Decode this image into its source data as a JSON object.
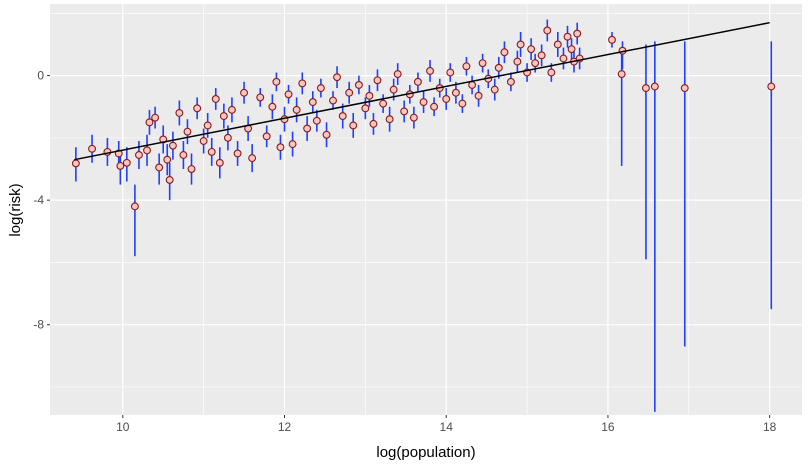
{
  "chart_data": {
    "type": "scatter",
    "xlabel": "log(population)",
    "ylabel": "log(risk)",
    "xlim": [
      9.1,
      18.4
    ],
    "ylim": [
      -10.9,
      2.3
    ],
    "x_ticks": [
      10,
      12,
      14,
      16,
      18
    ],
    "y_ticks": [
      0,
      -4,
      -8
    ],
    "x_tick_labels": [
      "10",
      "12",
      "14",
      "16",
      "18"
    ],
    "y_tick_labels": [
      "0",
      "-4",
      "-8"
    ],
    "grid": true,
    "legend": "none",
    "colors": {
      "panel": "#ebebeb",
      "grid": "#ffffff",
      "point_fill": "#f4c7c3",
      "point_edge": "#8b1a1a",
      "error_bar": "#1f3fff",
      "trend_line": "#000000"
    },
    "trend_line": {
      "x": [
        9.4,
        18.0
      ],
      "y": [
        -2.7,
        1.7
      ]
    },
    "points": [
      {
        "x": 9.42,
        "y": -2.82,
        "lo": -3.4,
        "hi": -2.3
      },
      {
        "x": 9.62,
        "y": -2.35,
        "lo": -2.8,
        "hi": -1.9
      },
      {
        "x": 9.81,
        "y": -2.45,
        "lo": -2.9,
        "hi": -2.0
      },
      {
        "x": 9.95,
        "y": -2.5,
        "lo": -3.0,
        "hi": -2.1
      },
      {
        "x": 9.97,
        "y": -2.9,
        "lo": -3.5,
        "hi": -2.4
      },
      {
        "x": 10.05,
        "y": -2.8,
        "lo": -3.4,
        "hi": -2.3
      },
      {
        "x": 10.15,
        "y": -4.2,
        "lo": -5.8,
        "hi": -3.5
      },
      {
        "x": 10.2,
        "y": -2.55,
        "lo": -3.0,
        "hi": -2.1
      },
      {
        "x": 10.3,
        "y": -2.4,
        "lo": -2.9,
        "hi": -1.9
      },
      {
        "x": 10.33,
        "y": -1.5,
        "lo": -1.9,
        "hi": -1.1
      },
      {
        "x": 10.4,
        "y": -1.35,
        "lo": -1.7,
        "hi": -1.0
      },
      {
        "x": 10.45,
        "y": -2.95,
        "lo": -3.5,
        "hi": -2.5
      },
      {
        "x": 10.5,
        "y": -2.05,
        "lo": -2.5,
        "hi": -1.6
      },
      {
        "x": 10.55,
        "y": -2.7,
        "lo": -3.2,
        "hi": -2.2
      },
      {
        "x": 10.58,
        "y": -3.35,
        "lo": -4.0,
        "hi": -2.8
      },
      {
        "x": 10.62,
        "y": -2.25,
        "lo": -2.7,
        "hi": -1.8
      },
      {
        "x": 10.7,
        "y": -1.2,
        "lo": -1.6,
        "hi": -0.8
      },
      {
        "x": 10.75,
        "y": -2.55,
        "lo": -3.0,
        "hi": -2.1
      },
      {
        "x": 10.8,
        "y": -1.8,
        "lo": -2.2,
        "hi": -1.4
      },
      {
        "x": 10.85,
        "y": -3.0,
        "lo": -3.5,
        "hi": -2.5
      },
      {
        "x": 10.92,
        "y": -1.05,
        "lo": -1.4,
        "hi": -0.7
      },
      {
        "x": 11.0,
        "y": -2.1,
        "lo": -2.5,
        "hi": -1.7
      },
      {
        "x": 11.05,
        "y": -1.6,
        "lo": -2.0,
        "hi": -1.2
      },
      {
        "x": 11.1,
        "y": -2.45,
        "lo": -2.9,
        "hi": -2.0
      },
      {
        "x": 11.15,
        "y": -0.75,
        "lo": -1.1,
        "hi": -0.4
      },
      {
        "x": 11.2,
        "y": -2.8,
        "lo": -3.3,
        "hi": -2.3
      },
      {
        "x": 11.25,
        "y": -1.3,
        "lo": -1.7,
        "hi": -0.9
      },
      {
        "x": 11.3,
        "y": -2.0,
        "lo": -2.4,
        "hi": -1.6
      },
      {
        "x": 11.35,
        "y": -1.1,
        "lo": -1.5,
        "hi": -0.7
      },
      {
        "x": 11.42,
        "y": -2.5,
        "lo": -2.9,
        "hi": -2.1
      },
      {
        "x": 11.5,
        "y": -0.55,
        "lo": -0.9,
        "hi": -0.2
      },
      {
        "x": 11.55,
        "y": -1.7,
        "lo": -2.1,
        "hi": -1.3
      },
      {
        "x": 11.6,
        "y": -2.65,
        "lo": -3.1,
        "hi": -2.2
      },
      {
        "x": 11.7,
        "y": -0.7,
        "lo": -1.0,
        "hi": -0.4
      },
      {
        "x": 11.78,
        "y": -1.95,
        "lo": -2.3,
        "hi": -1.6
      },
      {
        "x": 11.85,
        "y": -1.0,
        "lo": -1.4,
        "hi": -0.6
      },
      {
        "x": 11.9,
        "y": -0.2,
        "lo": -0.5,
        "hi": 0.1
      },
      {
        "x": 11.95,
        "y": -2.3,
        "lo": -2.7,
        "hi": -1.9
      },
      {
        "x": 12.0,
        "y": -1.4,
        "lo": -1.8,
        "hi": -1.0
      },
      {
        "x": 12.05,
        "y": -0.6,
        "lo": -0.9,
        "hi": -0.3
      },
      {
        "x": 12.1,
        "y": -2.2,
        "lo": -2.6,
        "hi": -1.8
      },
      {
        "x": 12.15,
        "y": -1.1,
        "lo": -1.5,
        "hi": -0.7
      },
      {
        "x": 12.22,
        "y": -0.25,
        "lo": -0.6,
        "hi": 0.1
      },
      {
        "x": 12.28,
        "y": -1.7,
        "lo": -2.1,
        "hi": -1.3
      },
      {
        "x": 12.35,
        "y": -0.85,
        "lo": -1.2,
        "hi": -0.5
      },
      {
        "x": 12.4,
        "y": -1.45,
        "lo": -1.8,
        "hi": -1.1
      },
      {
        "x": 12.45,
        "y": -0.4,
        "lo": -0.7,
        "hi": -0.1
      },
      {
        "x": 12.52,
        "y": -1.9,
        "lo": -2.3,
        "hi": -1.5
      },
      {
        "x": 12.6,
        "y": -0.8,
        "lo": -1.1,
        "hi": -0.5
      },
      {
        "x": 12.65,
        "y": -0.05,
        "lo": -0.4,
        "hi": 0.3
      },
      {
        "x": 12.72,
        "y": -1.3,
        "lo": -1.7,
        "hi": -0.9
      },
      {
        "x": 12.8,
        "y": -0.55,
        "lo": -0.9,
        "hi": -0.2
      },
      {
        "x": 12.85,
        "y": -1.6,
        "lo": -2.0,
        "hi": -1.2
      },
      {
        "x": 12.92,
        "y": -0.3,
        "lo": -0.6,
        "hi": 0.0
      },
      {
        "x": 13.0,
        "y": -1.05,
        "lo": -1.4,
        "hi": -0.7
      },
      {
        "x": 13.05,
        "y": -0.65,
        "lo": -1.0,
        "hi": -0.3
      },
      {
        "x": 13.1,
        "y": -1.55,
        "lo": -1.9,
        "hi": -1.2
      },
      {
        "x": 13.15,
        "y": -0.15,
        "lo": -0.5,
        "hi": 0.2
      },
      {
        "x": 13.22,
        "y": -0.9,
        "lo": -1.2,
        "hi": -0.6
      },
      {
        "x": 13.3,
        "y": -1.4,
        "lo": -1.8,
        "hi": -1.0
      },
      {
        "x": 13.35,
        "y": -0.45,
        "lo": -0.8,
        "hi": -0.1
      },
      {
        "x": 13.4,
        "y": 0.05,
        "lo": -0.3,
        "hi": 0.4
      },
      {
        "x": 13.48,
        "y": -1.15,
        "lo": -1.5,
        "hi": -0.8
      },
      {
        "x": 13.55,
        "y": -0.6,
        "lo": -0.9,
        "hi": -0.3
      },
      {
        "x": 13.6,
        "y": -1.35,
        "lo": -1.7,
        "hi": -1.0
      },
      {
        "x": 13.65,
        "y": -0.2,
        "lo": -0.5,
        "hi": 0.1
      },
      {
        "x": 13.72,
        "y": -0.85,
        "lo": -1.2,
        "hi": -0.5
      },
      {
        "x": 13.8,
        "y": 0.15,
        "lo": -0.2,
        "hi": 0.5
      },
      {
        "x": 13.85,
        "y": -1.0,
        "lo": -1.3,
        "hi": -0.7
      },
      {
        "x": 13.92,
        "y": -0.4,
        "lo": -0.7,
        "hi": -0.1
      },
      {
        "x": 14.0,
        "y": -0.75,
        "lo": -1.1,
        "hi": -0.4
      },
      {
        "x": 14.05,
        "y": 0.1,
        "lo": -0.2,
        "hi": 0.4
      },
      {
        "x": 14.12,
        "y": -0.55,
        "lo": -0.9,
        "hi": -0.2
      },
      {
        "x": 14.2,
        "y": -0.9,
        "lo": -1.2,
        "hi": -0.6
      },
      {
        "x": 14.25,
        "y": 0.3,
        "lo": 0.0,
        "hi": 0.6
      },
      {
        "x": 14.32,
        "y": -0.3,
        "lo": -0.6,
        "hi": 0.0
      },
      {
        "x": 14.4,
        "y": -0.65,
        "lo": -1.0,
        "hi": -0.3
      },
      {
        "x": 14.45,
        "y": 0.4,
        "lo": 0.1,
        "hi": 0.7
      },
      {
        "x": 14.52,
        "y": -0.1,
        "lo": -0.4,
        "hi": 0.2
      },
      {
        "x": 14.6,
        "y": -0.45,
        "lo": -0.8,
        "hi": -0.1
      },
      {
        "x": 14.65,
        "y": 0.25,
        "lo": -0.1,
        "hi": 0.6
      },
      {
        "x": 14.72,
        "y": 0.75,
        "lo": 0.4,
        "hi": 1.1
      },
      {
        "x": 14.8,
        "y": -0.2,
        "lo": -0.5,
        "hi": 0.1
      },
      {
        "x": 14.88,
        "y": 0.45,
        "lo": 0.1,
        "hi": 0.8
      },
      {
        "x": 14.92,
        "y": 1.0,
        "lo": 0.6,
        "hi": 1.4
      },
      {
        "x": 15.0,
        "y": 0.1,
        "lo": -0.2,
        "hi": 0.4
      },
      {
        "x": 15.05,
        "y": 0.85,
        "lo": 0.5,
        "hi": 1.2
      },
      {
        "x": 15.1,
        "y": 0.4,
        "lo": 0.1,
        "hi": 0.7
      },
      {
        "x": 15.18,
        "y": 0.65,
        "lo": 0.3,
        "hi": 1.0
      },
      {
        "x": 15.25,
        "y": 1.45,
        "lo": 1.1,
        "hi": 1.8
      },
      {
        "x": 15.3,
        "y": 0.1,
        "lo": -0.2,
        "hi": 0.4
      },
      {
        "x": 15.38,
        "y": 1.0,
        "lo": 0.6,
        "hi": 1.4
      },
      {
        "x": 15.45,
        "y": 0.55,
        "lo": 0.2,
        "hi": 0.9
      },
      {
        "x": 15.5,
        "y": 1.25,
        "lo": 0.9,
        "hi": 1.6
      },
      {
        "x": 15.55,
        "y": 0.85,
        "lo": 0.5,
        "hi": 1.2
      },
      {
        "x": 15.58,
        "y": 0.45,
        "lo": 0.1,
        "hi": 0.8
      },
      {
        "x": 15.62,
        "y": 1.35,
        "lo": 1.0,
        "hi": 1.7
      },
      {
        "x": 15.65,
        "y": 0.55,
        "lo": 0.2,
        "hi": 0.9
      },
      {
        "x": 16.05,
        "y": 1.15,
        "lo": 0.9,
        "hi": 1.4
      },
      {
        "x": 16.17,
        "y": 0.05,
        "lo": -2.9,
        "hi": 0.9
      },
      {
        "x": 16.18,
        "y": 0.8,
        "lo": 0.2,
        "hi": 1.1
      },
      {
        "x": 16.47,
        "y": -0.4,
        "lo": -5.9,
        "hi": 1.0
      },
      {
        "x": 16.58,
        "y": -0.35,
        "lo": -10.8,
        "hi": 1.1
      },
      {
        "x": 16.95,
        "y": -0.4,
        "lo": -8.7,
        "hi": 1.1
      },
      {
        "x": 18.02,
        "y": -0.35,
        "lo": -7.5,
        "hi": 1.1
      }
    ]
  }
}
